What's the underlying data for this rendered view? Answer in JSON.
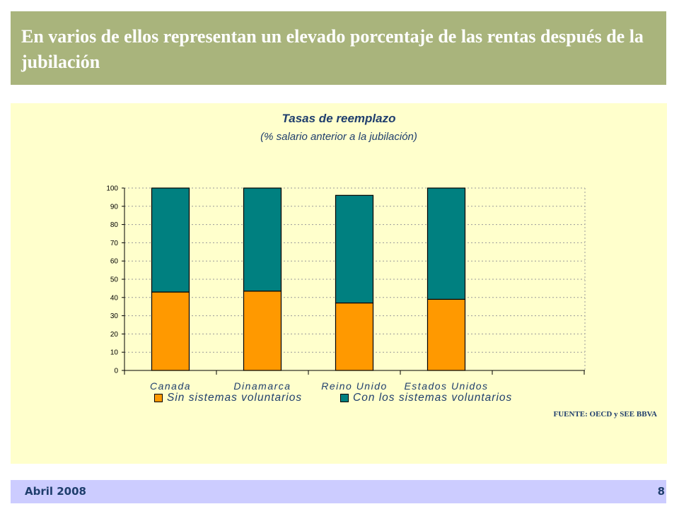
{
  "slide": {
    "title": "En varios de ellos representan un elevado porcentaje de las rentas después de la jubilación"
  },
  "chart_data": {
    "type": "bar",
    "stacked": true,
    "title": "Tasas de reemplazo",
    "subtitle": "(% salario anterior a la jubilación)",
    "categories": [
      "Canada",
      "Dinamarca",
      "Reino Unido",
      "Estados Unidos"
    ],
    "series": [
      {
        "name": "Sin sistemas voluntarios",
        "values": [
          43,
          43.5,
          37,
          39
        ],
        "color": "#ff9900"
      },
      {
        "name": "Con los sistemas voluntarios",
        "values": [
          57,
          56.5,
          59,
          61
        ],
        "color": "#008080"
      }
    ],
    "ylim": [
      0,
      100
    ],
    "yticks": [
      0,
      10,
      20,
      30,
      40,
      50,
      60,
      70,
      80,
      90,
      100
    ],
    "grid": true,
    "legend_position": "bottom",
    "source": "FUENTE: OECD y SEE BBVA"
  },
  "footer": {
    "date": "Abril 2008",
    "page": "8"
  }
}
